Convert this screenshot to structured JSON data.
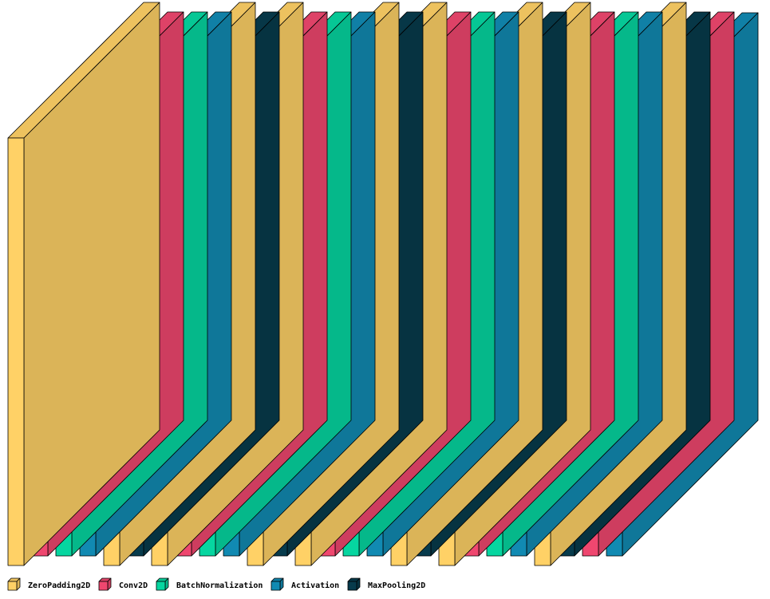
{
  "legend": [
    {
      "key": "zp",
      "label": "ZeroPadding2D",
      "color": "#FFD166"
    },
    {
      "key": "conv",
      "label": "Conv2D",
      "color": "#EF476F"
    },
    {
      "key": "bn",
      "label": "BatchNormalization",
      "color": "#06D6A0"
    },
    {
      "key": "act",
      "label": "Activation",
      "color": "#118AB2"
    },
    {
      "key": "pool",
      "label": "MaxPooling2D",
      "color": "#073B4C"
    }
  ],
  "layers": [
    {
      "type": "zp"
    },
    {
      "type": "conv"
    },
    {
      "type": "bn"
    },
    {
      "type": "act"
    },
    {
      "type": "zp"
    },
    {
      "type": "pool"
    },
    {
      "type": "zp"
    },
    {
      "type": "conv"
    },
    {
      "type": "bn"
    },
    {
      "type": "act"
    },
    {
      "type": "zp"
    },
    {
      "type": "pool"
    },
    {
      "type": "zp"
    },
    {
      "type": "conv"
    },
    {
      "type": "bn"
    },
    {
      "type": "act"
    },
    {
      "type": "zp"
    },
    {
      "type": "pool"
    },
    {
      "type": "zp"
    },
    {
      "type": "conv"
    },
    {
      "type": "bn"
    },
    {
      "type": "act"
    },
    {
      "type": "zp"
    },
    {
      "type": "pool"
    },
    {
      "type": "conv"
    },
    {
      "type": "act"
    }
  ]
}
